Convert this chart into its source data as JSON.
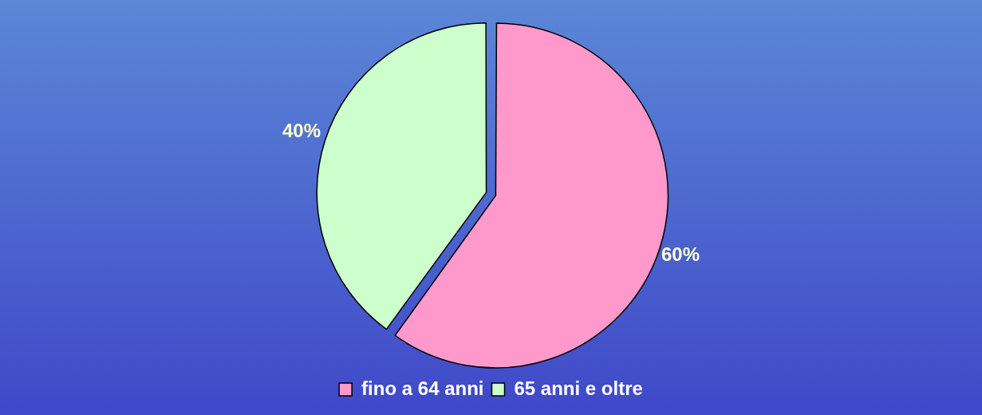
{
  "chart_data": {
    "type": "pie",
    "categories": [
      "fino a 64 anni",
      "65 anni e oltre"
    ],
    "values": [
      60,
      40
    ],
    "value_labels": [
      "60%",
      "40%"
    ],
    "colors": [
      "#ff99cc",
      "#ccffcc"
    ],
    "legend": "bottom"
  }
}
